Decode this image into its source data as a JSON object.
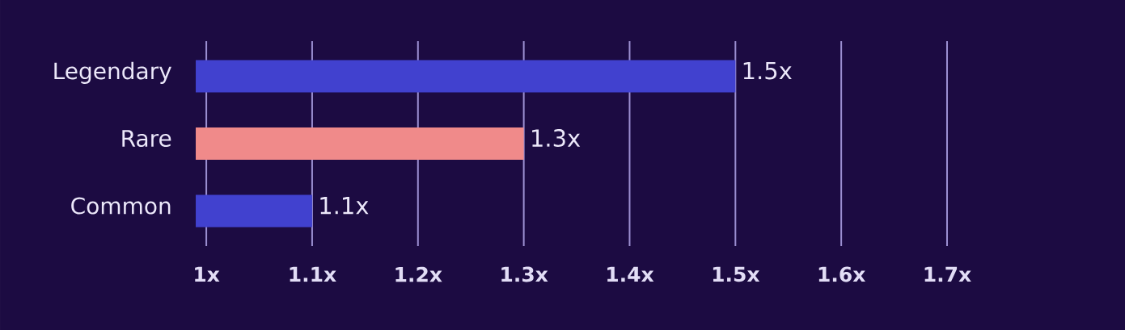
{
  "chart_data": {
    "type": "bar",
    "orientation": "horizontal",
    "categories": [
      "Legendary",
      "Rare",
      "Common"
    ],
    "values": [
      1.5,
      1.3,
      1.1
    ],
    "colors": [
      "#4141cf",
      "#f08a8a",
      "#4141cf"
    ],
    "value_labels": [
      "1.5x",
      "1.3x",
      "1.1x"
    ],
    "xlim": [
      0.99,
      1.7
    ],
    "xticks": [
      {
        "value": 1,
        "label": "1x"
      },
      {
        "value": 1.1,
        "label": "1.1x"
      },
      {
        "value": 1.2,
        "label": "1.2x"
      },
      {
        "value": 1.3,
        "label": "1.3x"
      },
      {
        "value": 1.4,
        "label": "1.4x"
      },
      {
        "value": 1.5,
        "label": "1.5x"
      },
      {
        "value": 1.6,
        "label": "1.6x"
      },
      {
        "value": 1.7,
        "label": "1.7x"
      }
    ],
    "grid": "x"
  }
}
